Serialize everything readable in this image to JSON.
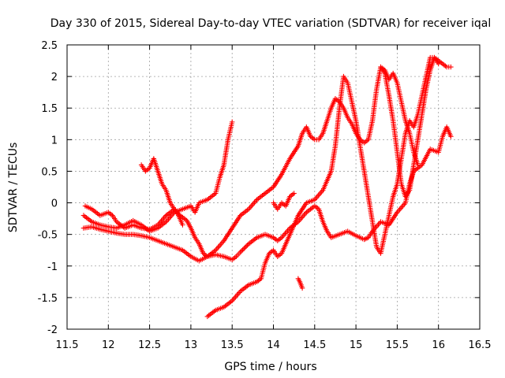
{
  "chart_data": {
    "type": "scatter",
    "title": "Day 330 of 2015, Sidereal Day-to-day VTEC variation (SDTVAR) for receiver iqal",
    "xlabel": "GPS time / hours",
    "ylabel": "SDTVAR / TECUs",
    "xlim": [
      11.5,
      16.5
    ],
    "ylim": [
      -2,
      2.5
    ],
    "x_ticks": [
      "11.5",
      "12",
      "12.5",
      "13",
      "13.5",
      "14",
      "14.5",
      "15",
      "15.5",
      "16",
      "16.5"
    ],
    "y_ticks": [
      "2.5",
      "2",
      "1.5",
      "1",
      "0.5",
      "0",
      "-0.5",
      "-1",
      "-1.5",
      "-2"
    ],
    "grid": true,
    "marker": "plus",
    "color": "#ff0000",
    "series": [
      {
        "points": [
          [
            11.7,
            -0.4
          ],
          [
            11.8,
            -0.38
          ],
          [
            11.9,
            -0.42
          ],
          [
            12.0,
            -0.45
          ],
          [
            12.1,
            -0.48
          ],
          [
            12.2,
            -0.5
          ],
          [
            12.3,
            -0.5
          ],
          [
            12.4,
            -0.52
          ],
          [
            12.5,
            -0.55
          ],
          [
            12.6,
            -0.6
          ],
          [
            12.7,
            -0.65
          ],
          [
            12.8,
            -0.7
          ],
          [
            12.9,
            -0.75
          ],
          [
            13.0,
            -0.85
          ],
          [
            13.1,
            -0.92
          ],
          [
            13.2,
            -0.85
          ],
          [
            13.3,
            -0.82
          ],
          [
            13.4,
            -0.85
          ],
          [
            13.5,
            -0.9
          ],
          [
            13.55,
            -0.85
          ],
          [
            13.6,
            -0.78
          ],
          [
            13.7,
            -0.65
          ],
          [
            13.8,
            -0.55
          ],
          [
            13.9,
            -0.5
          ],
          [
            14.0,
            -0.55
          ],
          [
            14.05,
            -0.6
          ],
          [
            14.1,
            -0.55
          ],
          [
            14.2,
            -0.4
          ],
          [
            14.3,
            -0.3
          ],
          [
            14.4,
            -0.15
          ],
          [
            14.5,
            -0.05
          ],
          [
            14.55,
            -0.1
          ],
          [
            14.6,
            -0.3
          ],
          [
            14.65,
            -0.45
          ],
          [
            14.7,
            -0.55
          ],
          [
            14.8,
            -0.5
          ],
          [
            14.9,
            -0.45
          ],
          [
            15.0,
            -0.52
          ],
          [
            15.1,
            -0.58
          ],
          [
            15.15,
            -0.55
          ],
          [
            15.2,
            -0.45
          ],
          [
            15.3,
            -0.3
          ],
          [
            15.4,
            -0.35
          ],
          [
            15.5,
            -0.15
          ],
          [
            15.6,
            0.0
          ],
          [
            15.65,
            0.3
          ],
          [
            15.7,
            0.5
          ],
          [
            15.8,
            0.6
          ],
          [
            15.9,
            0.85
          ],
          [
            16.0,
            0.8
          ],
          [
            16.05,
            1.05
          ],
          [
            16.1,
            1.2
          ],
          [
            16.15,
            1.05
          ]
        ]
      },
      {
        "points": [
          [
            11.7,
            -0.2
          ],
          [
            11.8,
            -0.3
          ],
          [
            11.9,
            -0.35
          ],
          [
            12.0,
            -0.38
          ],
          [
            12.1,
            -0.4
          ],
          [
            12.2,
            -0.35
          ],
          [
            12.3,
            -0.28
          ],
          [
            12.4,
            -0.35
          ],
          [
            12.5,
            -0.45
          ],
          [
            12.6,
            -0.4
          ],
          [
            12.7,
            -0.3
          ],
          [
            12.8,
            -0.15
          ],
          [
            12.9,
            -0.1
          ],
          [
            13.0,
            -0.05
          ],
          [
            13.05,
            -0.15
          ],
          [
            13.1,
            0.0
          ],
          [
            13.2,
            0.05
          ],
          [
            13.3,
            0.15
          ],
          [
            13.35,
            0.4
          ],
          [
            13.4,
            0.6
          ],
          [
            13.45,
            1.0
          ],
          [
            13.5,
            1.28
          ]
        ]
      },
      {
        "points": [
          [
            12.4,
            0.6
          ],
          [
            12.45,
            0.5
          ],
          [
            12.5,
            0.55
          ],
          [
            12.55,
            0.7
          ],
          [
            12.6,
            0.5
          ],
          [
            12.65,
            0.3
          ],
          [
            12.7,
            0.2
          ],
          [
            12.75,
            0.0
          ],
          [
            12.8,
            -0.1
          ],
          [
            12.85,
            -0.2
          ],
          [
            12.9,
            -0.35
          ]
        ]
      },
      {
        "points": [
          [
            11.72,
            -0.05
          ],
          [
            11.8,
            -0.1
          ],
          [
            11.9,
            -0.2
          ],
          [
            12.0,
            -0.15
          ],
          [
            12.05,
            -0.2
          ],
          [
            12.1,
            -0.3
          ],
          [
            12.2,
            -0.4
          ],
          [
            12.3,
            -0.35
          ],
          [
            12.4,
            -0.4
          ],
          [
            12.5,
            -0.42
          ],
          [
            12.6,
            -0.35
          ],
          [
            12.7,
            -0.2
          ],
          [
            12.8,
            -0.1
          ],
          [
            12.85,
            -0.18
          ],
          [
            12.95,
            -0.28
          ],
          [
            13.0,
            -0.4
          ],
          [
            13.05,
            -0.55
          ],
          [
            13.1,
            -0.65
          ],
          [
            13.15,
            -0.8
          ],
          [
            13.2,
            -0.85
          ],
          [
            13.3,
            -0.75
          ],
          [
            13.4,
            -0.6
          ],
          [
            13.5,
            -0.4
          ],
          [
            13.6,
            -0.2
          ],
          [
            13.7,
            -0.1
          ],
          [
            13.8,
            0.05
          ],
          [
            13.9,
            0.15
          ],
          [
            14.0,
            0.25
          ],
          [
            14.1,
            0.45
          ],
          [
            14.2,
            0.7
          ],
          [
            14.3,
            0.9
          ],
          [
            14.35,
            1.1
          ],
          [
            14.4,
            1.2
          ],
          [
            14.45,
            1.05
          ],
          [
            14.5,
            1.0
          ],
          [
            14.55,
            1.0
          ],
          [
            14.6,
            1.1
          ],
          [
            14.65,
            1.3
          ],
          [
            14.7,
            1.5
          ],
          [
            14.75,
            1.65
          ],
          [
            14.8,
            1.6
          ],
          [
            14.85,
            1.5
          ],
          [
            14.9,
            1.35
          ],
          [
            14.95,
            1.25
          ],
          [
            15.0,
            1.1
          ],
          [
            15.05,
            1.0
          ],
          [
            15.1,
            0.95
          ],
          [
            15.15,
            1.0
          ],
          [
            15.2,
            1.3
          ],
          [
            15.25,
            1.8
          ],
          [
            15.3,
            2.15
          ],
          [
            15.35,
            2.05
          ],
          [
            15.4,
            1.7
          ],
          [
            15.45,
            1.3
          ],
          [
            15.5,
            0.8
          ],
          [
            15.55,
            0.3
          ],
          [
            15.6,
            0.1
          ],
          [
            15.65,
            0.2
          ],
          [
            15.7,
            0.6
          ],
          [
            15.75,
            1.0
          ],
          [
            15.8,
            1.4
          ],
          [
            15.85,
            1.8
          ],
          [
            15.9,
            2.1
          ],
          [
            15.95,
            2.3
          ],
          [
            16.0,
            2.25
          ],
          [
            16.05,
            2.2
          ],
          [
            16.1,
            2.15
          ],
          [
            16.15,
            2.15
          ]
        ]
      },
      {
        "points": [
          [
            13.2,
            -1.8
          ],
          [
            13.3,
            -1.7
          ],
          [
            13.4,
            -1.65
          ],
          [
            13.5,
            -1.55
          ],
          [
            13.6,
            -1.4
          ],
          [
            13.7,
            -1.3
          ],
          [
            13.8,
            -1.25
          ],
          [
            13.85,
            -1.2
          ],
          [
            13.9,
            -0.95
          ],
          [
            13.95,
            -0.8
          ],
          [
            14.0,
            -0.75
          ],
          [
            14.05,
            -0.85
          ],
          [
            14.1,
            -0.8
          ],
          [
            14.15,
            -0.65
          ],
          [
            14.2,
            -0.5
          ],
          [
            14.3,
            -0.2
          ],
          [
            14.4,
            0.0
          ],
          [
            14.5,
            0.05
          ],
          [
            14.6,
            0.2
          ],
          [
            14.7,
            0.5
          ],
          [
            14.75,
            0.9
          ],
          [
            14.8,
            1.5
          ],
          [
            14.85,
            2.0
          ],
          [
            14.9,
            1.9
          ],
          [
            14.95,
            1.6
          ],
          [
            15.0,
            1.3
          ],
          [
            15.05,
            0.9
          ],
          [
            15.1,
            0.5
          ],
          [
            15.15,
            0.1
          ],
          [
            15.2,
            -0.3
          ],
          [
            15.25,
            -0.7
          ],
          [
            15.3,
            -0.8
          ],
          [
            15.35,
            -0.5
          ],
          [
            15.4,
            -0.2
          ],
          [
            15.45,
            0.1
          ],
          [
            15.5,
            0.3
          ],
          [
            15.55,
            0.7
          ],
          [
            15.6,
            1.1
          ],
          [
            15.65,
            1.3
          ],
          [
            15.7,
            1.2
          ],
          [
            15.75,
            1.4
          ],
          [
            15.8,
            1.7
          ],
          [
            15.85,
            2.0
          ],
          [
            15.9,
            2.3
          ],
          [
            15.95,
            2.3
          ],
          [
            16.0,
            2.2
          ]
        ]
      },
      {
        "points": [
          [
            14.3,
            -1.2
          ],
          [
            14.32,
            -1.25
          ],
          [
            14.35,
            -1.35
          ]
        ]
      },
      {
        "points": [
          [
            14.0,
            0.0
          ],
          [
            14.05,
            -0.1
          ],
          [
            14.1,
            0.0
          ],
          [
            14.15,
            -0.05
          ],
          [
            14.2,
            0.1
          ],
          [
            14.25,
            0.15
          ]
        ]
      },
      {
        "points": [
          [
            15.3,
            2.15
          ],
          [
            15.35,
            2.1
          ],
          [
            15.4,
            1.95
          ],
          [
            15.45,
            2.05
          ],
          [
            15.5,
            1.9
          ],
          [
            15.55,
            1.6
          ],
          [
            15.6,
            1.3
          ],
          [
            15.65,
            1.1
          ],
          [
            15.7,
            0.8
          ],
          [
            15.75,
            0.6
          ]
        ]
      }
    ]
  }
}
